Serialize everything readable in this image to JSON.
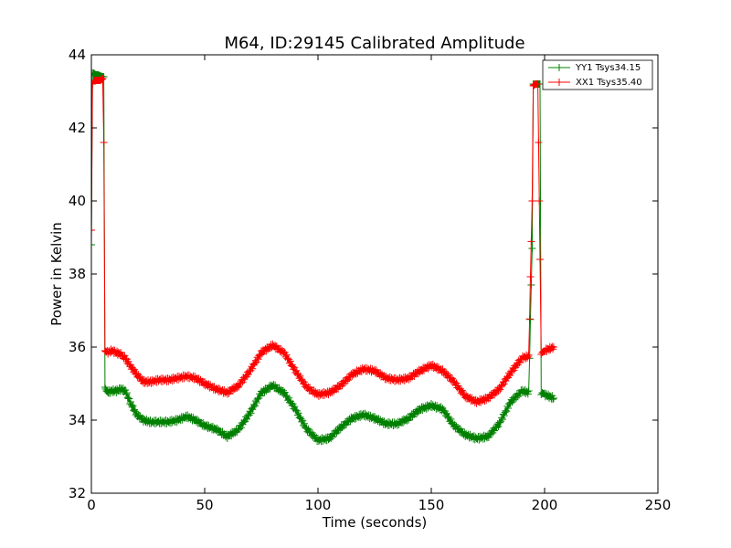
{
  "chart_data": {
    "type": "line",
    "title": "M64, ID:29145 Calibrated Amplitude",
    "xlabel": "Time (seconds)",
    "ylabel": "Power in Kelvin",
    "xlim": [
      0,
      250
    ],
    "ylim": [
      32,
      44
    ],
    "xticks": [
      "0",
      "50",
      "100",
      "150",
      "200",
      "250"
    ],
    "yticks": [
      "32",
      "34",
      "36",
      "38",
      "40",
      "42",
      "44"
    ],
    "grid": false,
    "legend_position": "top-right",
    "series": [
      {
        "name": "YY1 Tsys34.15",
        "color": "#008000",
        "marker": "+",
        "x": [
          0,
          0.5,
          1,
          2,
          3,
          4,
          5,
          5.5,
          6,
          7,
          9,
          11,
          13,
          15,
          17,
          20,
          23,
          26,
          30,
          34,
          38,
          42,
          46,
          50,
          55,
          60,
          65,
          70,
          75,
          80,
          85,
          90,
          95,
          100,
          105,
          110,
          115,
          120,
          125,
          130,
          135,
          140,
          145,
          150,
          155,
          160,
          165,
          170,
          175,
          180,
          185,
          190,
          193,
          194.5,
          195,
          195.5,
          196,
          197,
          198,
          198.5,
          199,
          200,
          202,
          204
        ],
        "y": [
          38.8,
          43.5,
          43.5,
          43.45,
          43.45,
          43.42,
          43.4,
          43.4,
          34.9,
          34.75,
          34.8,
          34.8,
          34.85,
          34.8,
          34.5,
          34.15,
          34.0,
          33.95,
          33.95,
          33.95,
          34.0,
          34.1,
          34.0,
          33.85,
          33.75,
          33.55,
          33.75,
          34.2,
          34.75,
          34.95,
          34.75,
          34.3,
          33.75,
          33.45,
          33.5,
          33.8,
          34.05,
          34.15,
          34.05,
          33.9,
          33.9,
          34.05,
          34.3,
          34.4,
          34.3,
          33.85,
          33.6,
          33.5,
          33.55,
          33.9,
          34.5,
          34.8,
          34.75,
          38.7,
          43.2,
          43.2,
          43.2,
          43.2,
          43.2,
          34.7,
          34.75,
          34.7,
          34.65,
          34.6
        ]
      },
      {
        "name": "XX1 Tsys35.40",
        "color": "#ff0000",
        "marker": "+",
        "x": [
          0,
          0.5,
          1,
          2,
          3,
          4,
          5,
          5.5,
          6,
          7,
          9,
          11,
          13,
          15,
          17,
          20,
          23,
          26,
          30,
          34,
          38,
          42,
          46,
          50,
          55,
          60,
          65,
          70,
          75,
          80,
          85,
          90,
          95,
          100,
          105,
          110,
          115,
          120,
          125,
          130,
          135,
          140,
          145,
          150,
          155,
          160,
          165,
          170,
          175,
          180,
          185,
          190,
          193,
          194.5,
          195,
          196,
          197,
          198,
          198.5,
          199,
          200,
          202,
          204
        ],
        "y": [
          39.2,
          43.2,
          43.3,
          43.3,
          43.3,
          43.3,
          43.35,
          41.6,
          35.9,
          35.85,
          35.9,
          35.85,
          35.8,
          35.7,
          35.5,
          35.25,
          35.05,
          35.05,
          35.1,
          35.1,
          35.15,
          35.2,
          35.15,
          35.0,
          34.85,
          34.75,
          34.95,
          35.35,
          35.85,
          36.05,
          35.85,
          35.35,
          34.9,
          34.7,
          34.75,
          34.95,
          35.25,
          35.4,
          35.35,
          35.15,
          35.1,
          35.15,
          35.35,
          35.5,
          35.35,
          35.05,
          34.65,
          34.5,
          34.6,
          34.85,
          35.3,
          35.7,
          35.75,
          40.0,
          43.15,
          43.2,
          43.2,
          38.4,
          35.8,
          35.85,
          35.9,
          35.95,
          36.0
        ]
      }
    ]
  }
}
